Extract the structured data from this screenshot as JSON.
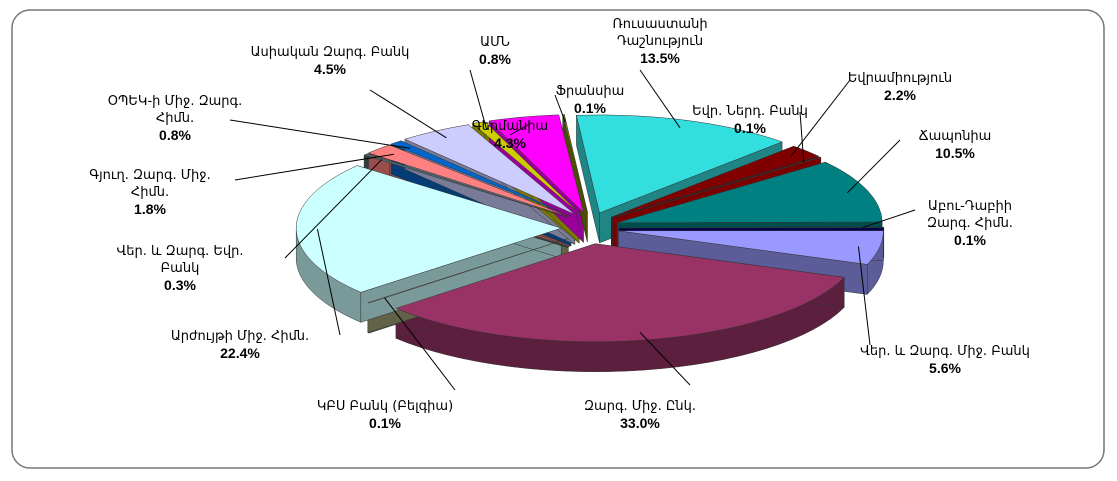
{
  "chart_data": {
    "type": "pie",
    "categories": [
      "Ռուսաստանի Դաշնություն",
      "Եվրամիություն",
      "Եվր. Ներդ. Բանկ",
      "Ճապոնիա",
      "Աբու-Դաբիի Զարգ. Հիմն.",
      "Վեր. և Զարգ. Միջ. Բանկ",
      "Զարգ. Միջ. Ընկ.",
      "ԿԲՍ Բանկ (Բելգիա)",
      "Արժույթի Միջ. Հիմն.",
      "Վեր. և Զարգ. Եվր. Բանկ",
      "Գյուղ. Զարգ. Միջ. Հիմն.",
      "ՕՊԵԿ-ի Միջ. Զարգ. Հիմն.",
      "Ասիական Զարգ. Բանկ",
      "ԱՄՆ",
      "Գերմանիա",
      "Ֆրանսիա"
    ],
    "values": [
      13.5,
      2.2,
      0.1,
      10.5,
      0.1,
      5.6,
      33.0,
      0.1,
      22.4,
      0.3,
      1.8,
      0.8,
      4.5,
      0.8,
      4.3,
      0.1
    ],
    "value_labels": [
      "13.5%",
      "2.2%",
      "0.1%",
      "10.5%",
      "0.1%",
      "5.6%",
      "33.0%",
      "0.1%",
      "22.4%",
      "0.3%",
      "1.8%",
      "0.8%",
      "4.5%",
      "0.8%",
      "4.3%",
      "0.1%"
    ],
    "colors": [
      "#33dede",
      "#800000",
      "#cc0000",
      "#008080",
      "#000080",
      "#9999ff",
      "#993366",
      "#a3a37a",
      "#ccffff",
      "#4d6b6b",
      "#ff8080",
      "#0066cc",
      "#ccccff",
      "#cccc00",
      "#ff00ff",
      "#808000"
    ]
  }
}
